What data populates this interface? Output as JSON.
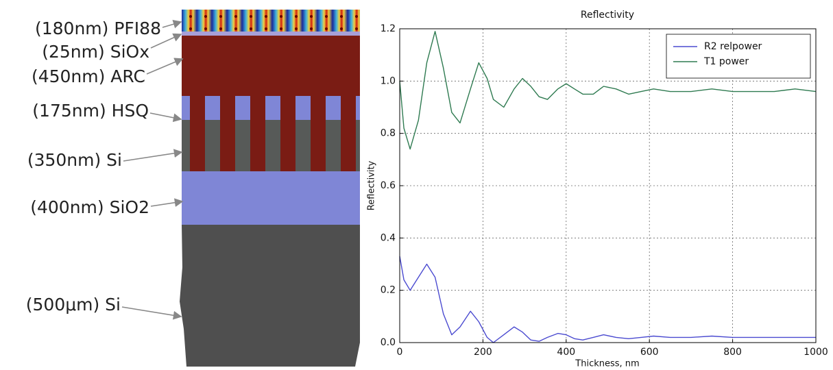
{
  "diagram": {
    "layers": [
      "(180nm) PFI88",
      "(25nm) SiOx",
      "(450nm) ARC",
      "(175nm) HSQ",
      "(350nm) Si",
      "(400nm) SiO2",
      "(500μm) Si"
    ]
  },
  "chart_data": {
    "type": "line",
    "title": "Reflectivity",
    "xlabel": "Thickness, nm",
    "ylabel": "Reflectivity",
    "x": [
      0,
      10,
      25,
      45,
      65,
      85,
      105,
      125,
      145,
      170,
      190,
      210,
      225,
      250,
      275,
      295,
      315,
      335,
      355,
      380,
      400,
      420,
      440,
      465,
      490,
      520,
      550,
      580,
      610,
      650,
      700,
      750,
      800,
      850,
      900,
      950,
      1000
    ],
    "series": [
      {
        "name": "R2 relpower",
        "color": "#4a4ad0",
        "values": [
          0.33,
          0.24,
          0.2,
          0.25,
          0.3,
          0.25,
          0.11,
          0.03,
          0.06,
          0.12,
          0.08,
          0.02,
          0.0,
          0.03,
          0.06,
          0.04,
          0.01,
          0.005,
          0.02,
          0.035,
          0.03,
          0.015,
          0.01,
          0.02,
          0.03,
          0.02,
          0.015,
          0.02,
          0.025,
          0.02,
          0.02,
          0.025,
          0.02,
          0.02,
          0.02,
          0.02,
          0.02
        ]
      },
      {
        "name": "T1 power",
        "color": "#2e7a50",
        "values": [
          1.0,
          0.82,
          0.74,
          0.85,
          1.07,
          1.19,
          1.05,
          0.88,
          0.84,
          0.97,
          1.07,
          1.01,
          0.93,
          0.9,
          0.97,
          1.01,
          0.98,
          0.94,
          0.93,
          0.97,
          0.99,
          0.97,
          0.95,
          0.95,
          0.98,
          0.97,
          0.95,
          0.96,
          0.97,
          0.96,
          0.96,
          0.97,
          0.96,
          0.96,
          0.96,
          0.97,
          0.96
        ]
      }
    ],
    "xlim": [
      0,
      1000
    ],
    "ylim": [
      0,
      1.2
    ],
    "xticks": [
      0,
      200,
      400,
      600,
      800,
      1000
    ],
    "yticks": [
      {
        "value": 0,
        "label": "0.0"
      },
      0.2,
      0.4,
      0.6,
      0.8,
      {
        "value": 1,
        "label": "1.0"
      },
      1.2
    ],
    "grid": true,
    "legend": "upper right"
  }
}
